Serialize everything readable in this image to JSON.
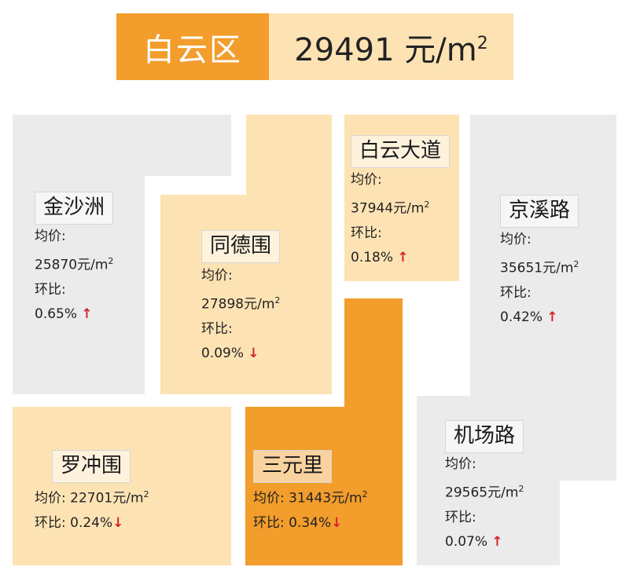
{
  "header": {
    "district": "白云区",
    "price": "29491 元/m",
    "sup": "2"
  },
  "avg_label": "均价:",
  "mom_label": "环比:",
  "unit": "元/m",
  "unit_sup": "2",
  "regions": [
    {
      "name": "金沙洲",
      "price": "25870",
      "change": "0.65%",
      "dir": "↑"
    },
    {
      "name": "同德围",
      "price": "27898",
      "change": "0.09%",
      "dir": "↓"
    },
    {
      "name": "白云大道",
      "price": "37944",
      "change": "0.18%",
      "dir": "↑"
    },
    {
      "name": "京溪路",
      "price": "35651",
      "change": "0.42%",
      "dir": "↑"
    },
    {
      "name": "罗冲围",
      "price": "22701",
      "change": "0.24%",
      "dir": "↓"
    },
    {
      "name": "三元里",
      "price": "31443",
      "change": "0.34%",
      "dir": "↓"
    },
    {
      "name": "机场路",
      "price": "29565",
      "change": "0.07%",
      "dir": "↑"
    }
  ],
  "colors": {
    "grey": "#ebebeb",
    "light_orange": "#fde3b4",
    "orange": "#f29d2c",
    "arrow": "#d62424"
  }
}
